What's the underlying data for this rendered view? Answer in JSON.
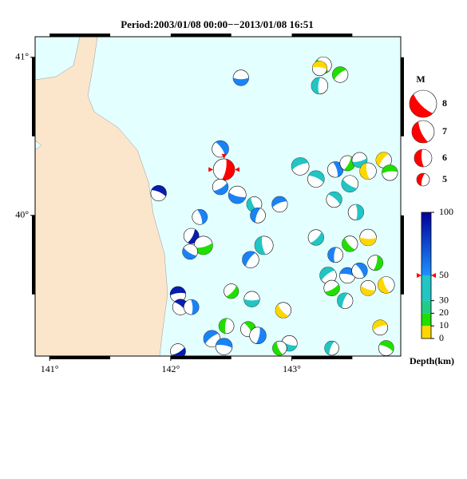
{
  "chart_data": {
    "type": "focal-mechanism-map",
    "title": "Period:2003/01/08 00:00−−2013/01/08 16:51",
    "xlim": [
      140.88,
      143.9
    ],
    "ylim": [
      39.11,
      41.13
    ],
    "xticks": [
      {
        "value": 141,
        "label": "141°"
      },
      {
        "value": 142,
        "label": "142°"
      },
      {
        "value": 143,
        "label": "143°"
      }
    ],
    "yticks": [
      {
        "value": 40,
        "label": "40°"
      },
      {
        "value": 41,
        "label": "41°"
      }
    ],
    "x": [
      142.58,
      143.26,
      143.23,
      143.4,
      143.23,
      142.41,
      142.44,
      142.41,
      142.55,
      142.69,
      142.72,
      142.9,
      141.9,
      142.24,
      142.17,
      142.27,
      142.16,
      142.77,
      142.66,
      142.06,
      142.08,
      142.17,
      142.5,
      142.67,
      142.93,
      142.46,
      142.34,
      142.44,
      142.64,
      142.72,
      142.06,
      142.98,
      142.9,
      143.33,
      143.07,
      143.2,
      143.36,
      143.46,
      143.56,
      143.48,
      143.63,
      143.76,
      143.81,
      143.35,
      143.53,
      143.2,
      143.63,
      143.48,
      143.36,
      143.3,
      143.46,
      143.56,
      143.69,
      143.33,
      143.63,
      143.78,
      143.44,
      143.73,
      143.78
    ],
    "y": [
      40.87,
      40.95,
      40.82,
      40.89,
      40.93,
      40.42,
      40.29,
      40.18,
      40.13,
      40.07,
      40.0,
      40.07,
      40.14,
      39.99,
      39.87,
      39.81,
      39.77,
      39.81,
      39.72,
      39.5,
      39.42,
      39.42,
      39.52,
      39.47,
      39.4,
      39.3,
      39.22,
      39.17,
      39.28,
      39.24,
      39.14,
      39.19,
      39.16,
      39.16,
      40.31,
      40.23,
      40.29,
      40.33,
      40.35,
      40.2,
      40.28,
      40.35,
      40.27,
      40.1,
      40.02,
      39.86,
      39.86,
      39.82,
      39.75,
      39.62,
      39.62,
      39.65,
      39.7,
      39.54,
      39.54,
      39.56,
      39.46,
      39.29,
      39.16
    ],
    "depth": [
      55,
      15,
      35,
      15,
      5,
      55,
      50,
      55,
      55,
      35,
      55,
      55,
      90,
      55,
      90,
      15,
      55,
      35,
      55,
      90,
      90,
      55,
      15,
      35,
      5,
      15,
      55,
      55,
      15,
      55,
      90,
      35,
      15,
      35,
      35,
      35,
      55,
      15,
      35,
      35,
      5,
      5,
      15,
      35,
      35,
      35,
      5,
      15,
      55,
      35,
      55,
      55,
      15,
      15,
      5,
      5,
      35,
      5,
      15
    ],
    "magnitude": [
      5.6,
      5.8,
      5.8,
      5.6,
      5.4,
      5.8,
      6.8,
      5.6,
      6.0,
      5.5,
      5.5,
      5.6,
      5.6,
      5.5,
      5.5,
      6.2,
      5.5,
      6.2,
      5.8,
      5.6,
      5.6,
      5.5,
      5.4,
      5.6,
      5.6,
      5.5,
      5.8,
      5.8,
      5.5,
      5.8,
      5.5,
      5.6,
      5.3,
      5.3,
      6.0,
      5.8,
      5.6,
      5.5,
      5.5,
      5.8,
      5.8,
      5.6,
      5.6,
      5.6,
      5.6,
      5.6,
      5.8,
      5.6,
      5.5,
      5.8,
      5.6,
      5.6,
      5.5,
      5.6,
      5.5,
      5.8,
      5.6,
      5.5,
      5.5
    ],
    "highlight_index": 6,
    "highlight_color": "#ff0000",
    "land_color": "#fbe6cc",
    "sea_color": "#e4ffff",
    "magnitude_legend": {
      "title": "M",
      "values": [
        8,
        7,
        6,
        5
      ]
    },
    "colorbar": {
      "title": "Depth(km)",
      "lim": [
        0,
        100
      ],
      "ticks": [
        0,
        10,
        20,
        30,
        50,
        100
      ],
      "colors": [
        "#ffd700",
        "#22dd00",
        "#22cc88",
        "#22c4c4",
        "#1e90ff",
        "#00009a"
      ]
    }
  }
}
